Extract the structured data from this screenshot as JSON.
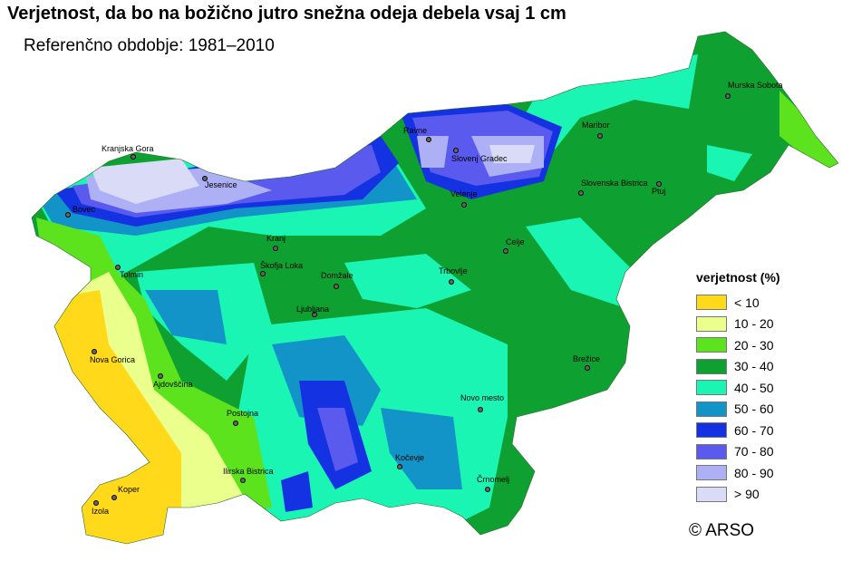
{
  "title": "Verjetnost, da bo na božično jutro snežna odeja debela vsaj 1 cm",
  "subtitle": "Referenčno obdobje: 1981–2010",
  "legend": {
    "title": "verjetnost (%)",
    "items": [
      {
        "label": "< 10",
        "color": "#ffd91a"
      },
      {
        "label": "10 - 20",
        "color": "#ebff8c"
      },
      {
        "label": "20 - 30",
        "color": "#5de31e"
      },
      {
        "label": "30 - 40",
        "color": "#0fa032"
      },
      {
        "label": "40 - 50",
        "color": "#1af5b4"
      },
      {
        "label": "50 - 60",
        "color": "#1394c8"
      },
      {
        "label": "60 - 70",
        "color": "#1432e1"
      },
      {
        "label": "70 - 80",
        "color": "#5a5aee"
      },
      {
        "label": "80 - 90",
        "color": "#aeb0f5"
      },
      {
        "label": "> 90",
        "color": "#d9dbf7"
      }
    ]
  },
  "cities": [
    {
      "name": "Kranjska Gora"
    },
    {
      "name": "Jesenice"
    },
    {
      "name": "Bovec"
    },
    {
      "name": "Tolmin"
    },
    {
      "name": "Kranj"
    },
    {
      "name": "Škofja Loka"
    },
    {
      "name": "Domžale"
    },
    {
      "name": "Ljubljana"
    },
    {
      "name": "Nova Gorica"
    },
    {
      "name": "Ajdovščina"
    },
    {
      "name": "Postojna"
    },
    {
      "name": "Ilirska Bistrica"
    },
    {
      "name": "Koper"
    },
    {
      "name": "Izola"
    },
    {
      "name": "Kočevje"
    },
    {
      "name": "Črnomelj"
    },
    {
      "name": "Novo mesto"
    },
    {
      "name": "Brežice"
    },
    {
      "name": "Trbovlje"
    },
    {
      "name": "Celje"
    },
    {
      "name": "Velenje"
    },
    {
      "name": "Slovenj Gradec"
    },
    {
      "name": "Ravne"
    },
    {
      "name": "Maribor"
    },
    {
      "name": "Slovenska Bistrica"
    },
    {
      "name": "Ptuj"
    },
    {
      "name": "Murska Sobota"
    }
  ],
  "copyright": "© ARSO"
}
